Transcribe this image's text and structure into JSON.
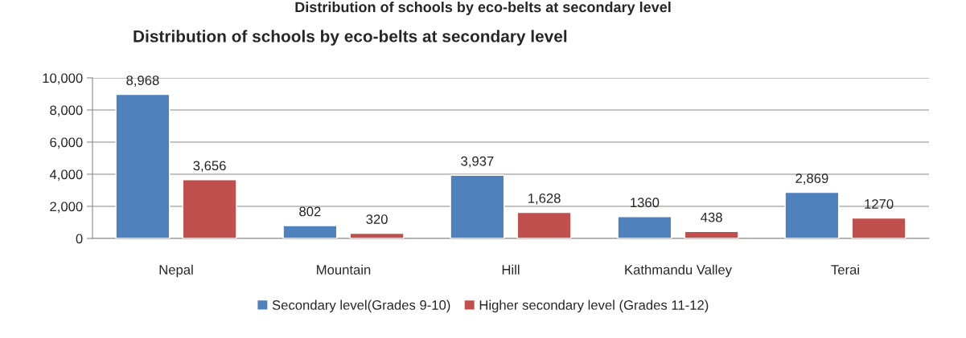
{
  "chart_data": {
    "type": "bar",
    "title": "Distribution of schools by eco-belts at secondary level",
    "subtitle": "Distribution of schools by eco-belts at secondary level",
    "categories": [
      "Nepal",
      "Mountain",
      "Hill",
      "Kathmandu Valley",
      "Terai"
    ],
    "series": [
      {
        "name": "Secondary level(Grades 9-10)",
        "color": "#4f81bd",
        "values": [
          8968,
          802,
          3937,
          1360,
          2869
        ],
        "value_labels": [
          "8,968",
          "802",
          "3,937",
          "1360",
          "2,869"
        ]
      },
      {
        "name": "Higher secondary level (Grades 11-12)",
        "color": "#c0504d",
        "values": [
          3656,
          320,
          1628,
          438,
          1270
        ],
        "value_labels": [
          "3,656",
          "320",
          "1,628",
          "438",
          "1270"
        ]
      }
    ],
    "ylim": [
      0,
      10000
    ],
    "yticks": [
      0,
      {
        "value": 2000,
        "label": "2,000"
      },
      {
        "value": 4000,
        "label": "4,000"
      },
      {
        "value": 6000,
        "label": "6,000"
      },
      {
        "value": 8000,
        "label": "8,000"
      },
      {
        "value": 10000,
        "label": "10,000"
      }
    ],
    "grid": "y",
    "legend": "bottom"
  }
}
